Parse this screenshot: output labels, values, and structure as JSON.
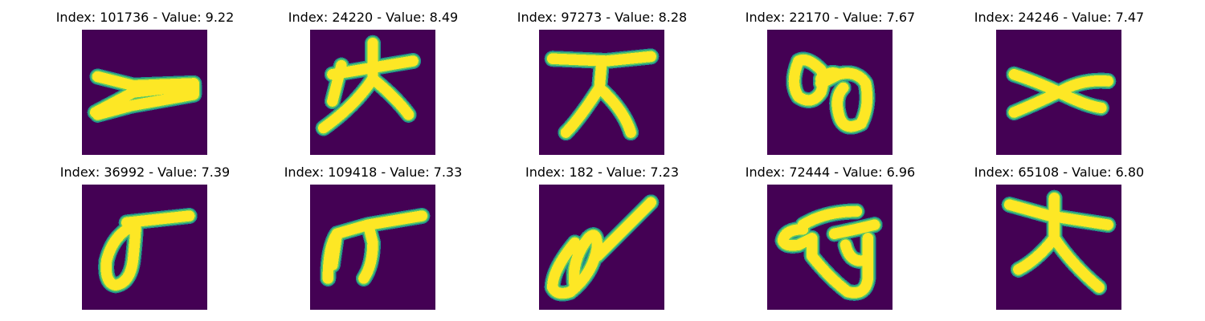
{
  "panels": [
    {
      "title": "Index: 101736 - Value: 9.22"
    },
    {
      "title": "Index: 24220 - Value: 8.49"
    },
    {
      "title": "Index: 97273 - Value: 8.28"
    },
    {
      "title": "Index: 22170 - Value: 7.67"
    },
    {
      "title": "Index: 24246 - Value: 7.47"
    },
    {
      "title": "Index: 36992 - Value: 7.39"
    },
    {
      "title": "Index: 109418 - Value: 7.33"
    },
    {
      "title": "Index: 182 - Value: 7.23"
    },
    {
      "title": "Index: 72444 - Value: 6.96"
    },
    {
      "title": "Index: 65108 - Value: 6.80"
    }
  ],
  "colors": {
    "background": "#440154",
    "stroke_edge": "#21918c",
    "stroke_mid": "#5ec962",
    "stroke_core": "#fde725"
  }
}
